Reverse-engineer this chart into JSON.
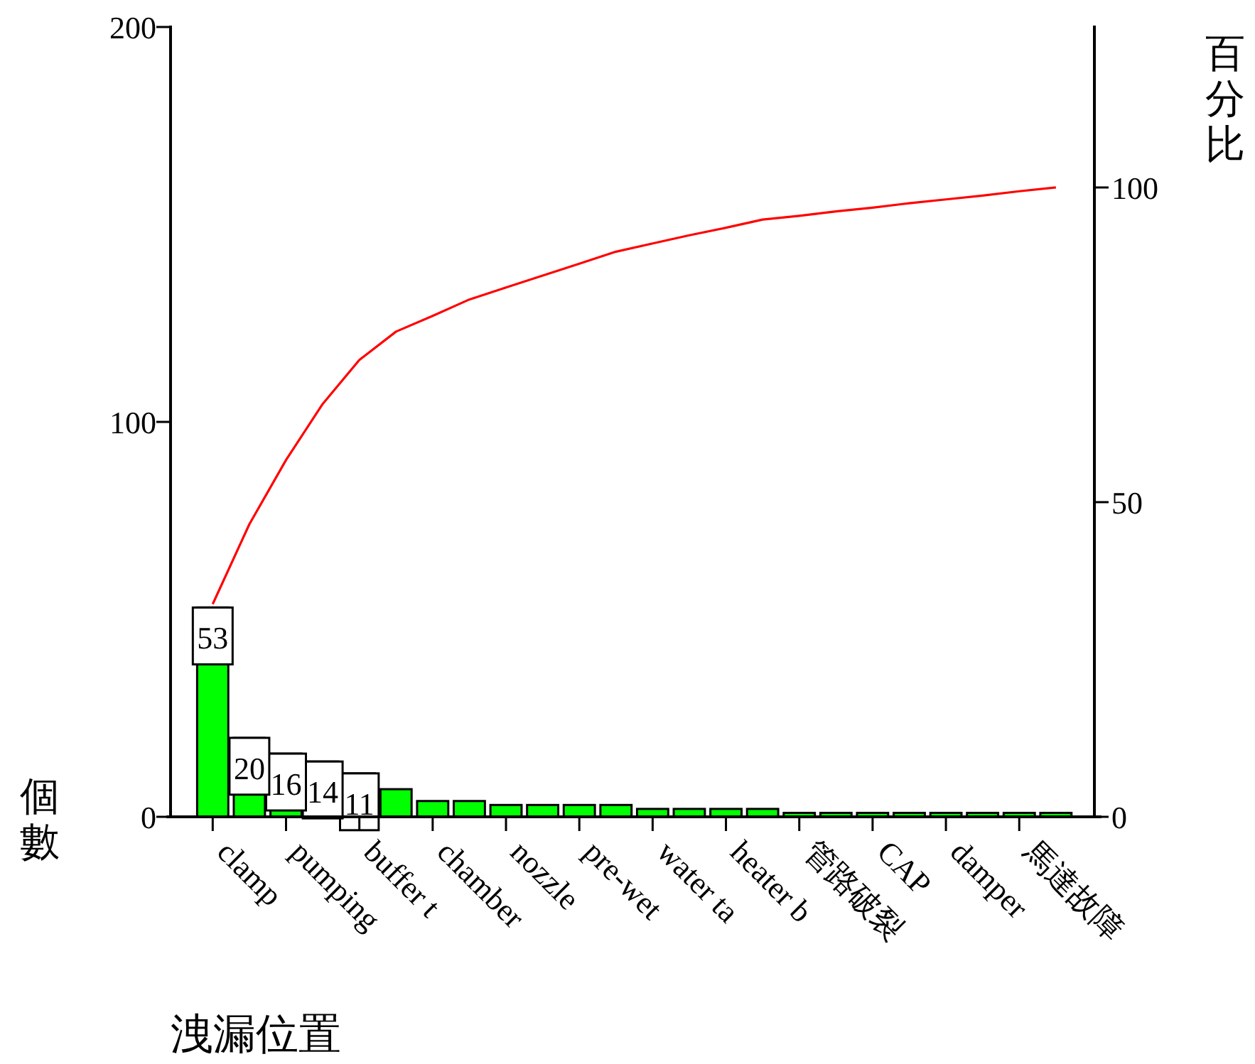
{
  "chart_data": {
    "type": "bar",
    "categories": [
      "clamp",
      null,
      "pumping",
      null,
      "buffer t",
      null,
      "chamber",
      null,
      "nozzle",
      null,
      "pre-wet",
      null,
      "water ta",
      null,
      "heater b",
      null,
      "管路破裂",
      null,
      "CAP",
      null,
      "damper",
      null,
      "馬達故障",
      null
    ],
    "series": [
      {
        "color": "#00ff00",
        "values": [
          53,
          20,
          16,
          14,
          11,
          7,
          4,
          4,
          3,
          3,
          3,
          3,
          2,
          2,
          2,
          2,
          1,
          1,
          1,
          1,
          1,
          1,
          1,
          1
        ],
        "value_labels": [
          "53",
          "20",
          "16",
          "14",
          "11",
          null,
          null,
          null,
          null,
          null,
          null,
          null,
          null,
          null,
          null,
          null,
          null,
          null,
          null,
          null,
          null,
          null,
          null,
          null
        ]
      },
      {
        "type": "line",
        "axis": "y2",
        "color": "#ff0000",
        "values": [
          33.8,
          46.5,
          56.7,
          65.6,
          72.6,
          77.1,
          79.6,
          82.2,
          84.1,
          86.0,
          87.9,
          89.8,
          91.1,
          92.4,
          93.6,
          94.9,
          95.5,
          96.2,
          96.8,
          97.5,
          98.1,
          98.7,
          99.4,
          100
        ]
      }
    ],
    "xlabel": "洩漏位置",
    "ylabel": "個數",
    "y2label": "百分比",
    "ylim": [
      0,
      200
    ],
    "yticks": [
      0,
      100,
      200
    ],
    "y2lim": [
      0,
      125.5
    ],
    "y2ticks": [
      0,
      50,
      100
    ]
  }
}
